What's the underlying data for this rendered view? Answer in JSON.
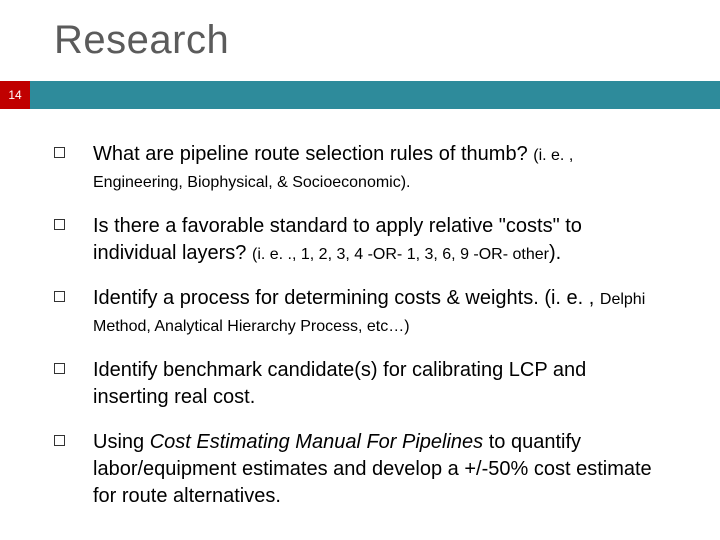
{
  "title": "Research",
  "slide_number": "14",
  "colors": {
    "badge_bg": "#c00000",
    "band_bg": "#2e8b9b",
    "title_color": "#5b5b5b",
    "text_color": "#000000"
  },
  "bullets": [
    {
      "main": "What are pipeline route selection rules of thumb? ",
      "small_lead": "(i. e. , ",
      "small_rest": "Engineering, Biophysical,  & Socioeconomic)."
    },
    {
      "main": "Is there a favorable standard to apply relative \"costs\" to individual layers?  ",
      "small_lead": "(",
      "small_rest": "i. e. ., 1, 2, 3, 4 -OR- 1, 3, 6, 9 -OR- other",
      "small_close": ")."
    },
    {
      "main": "Identify a process for determining costs & weights. (i. e. , ",
      "small_rest": "Delphi Method, Analytical Hierarchy Process, etc…)"
    },
    {
      "main": "Identify benchmark candidate(s) for calibrating LCP and inserting real cost."
    },
    {
      "main_pre": "Using ",
      "italic": "Cost Estimating Manual For Pipelines ",
      "main_post": "to quantify labor/equipment estimates and develop a +/-50% cost estimate for route alternatives."
    }
  ]
}
